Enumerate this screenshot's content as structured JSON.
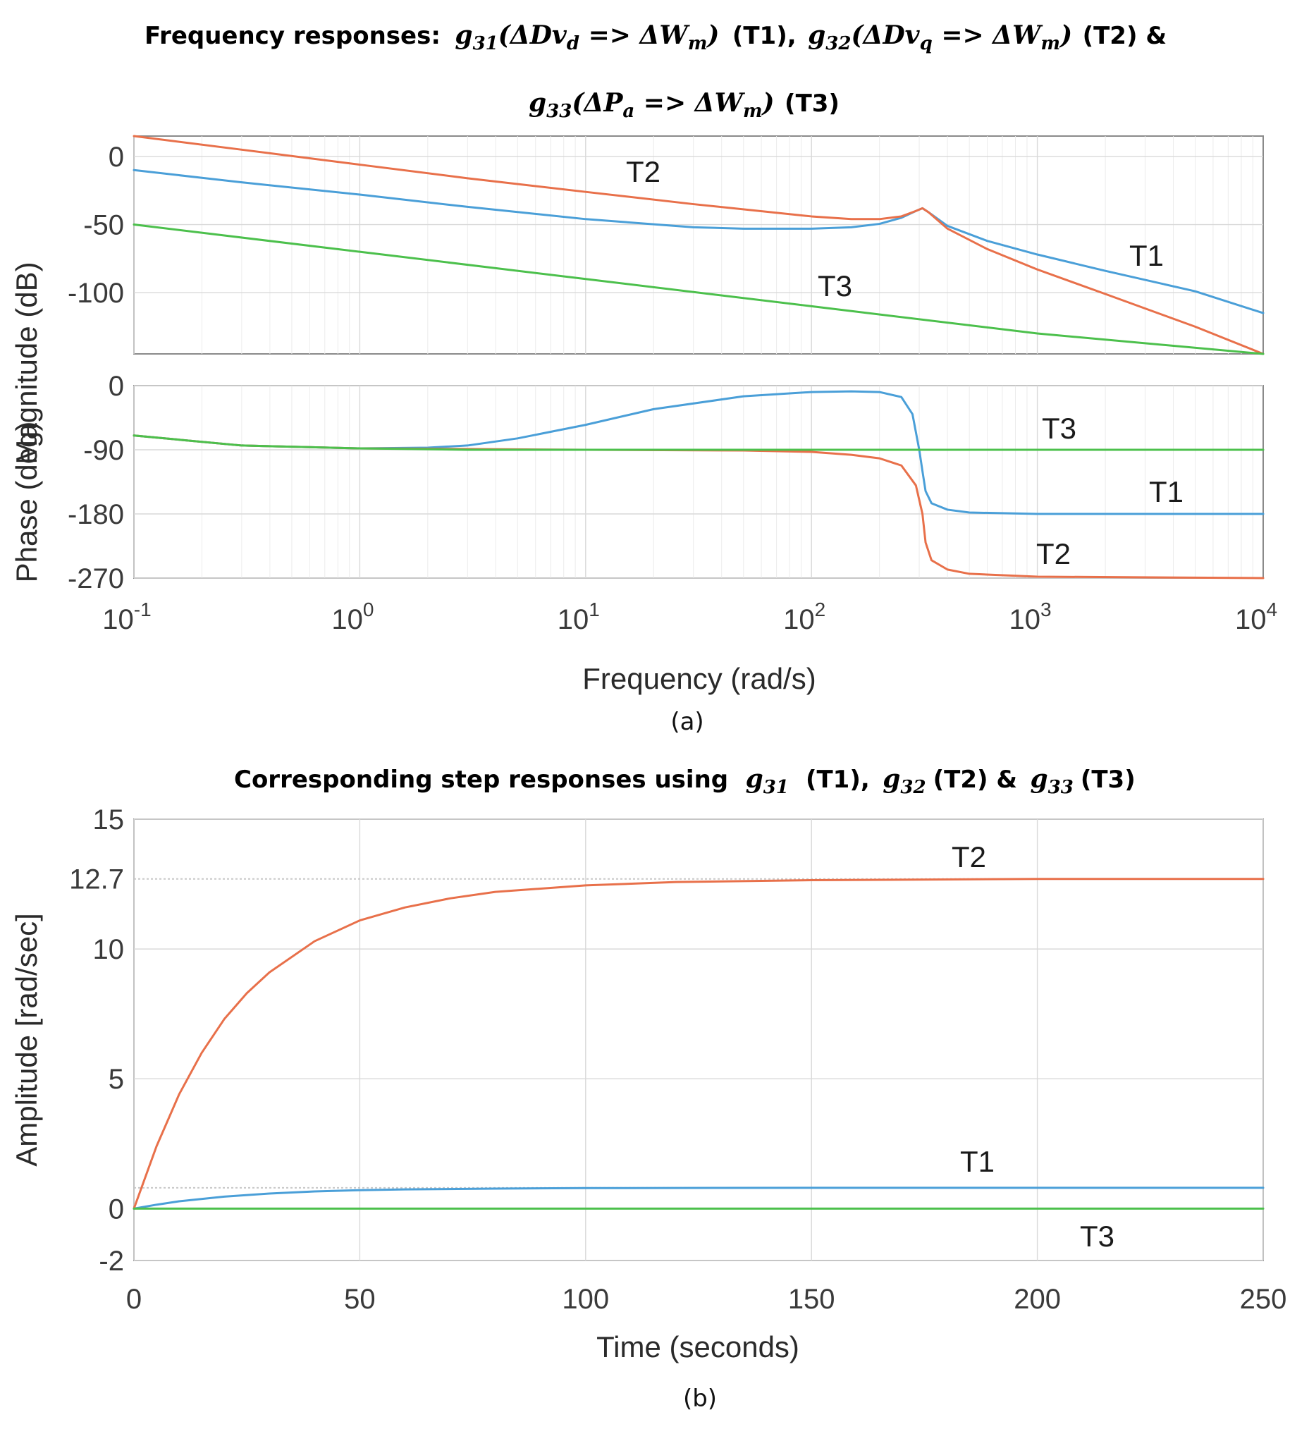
{
  "titles": {
    "freq_prefix": "Frequency responses:",
    "freq_eq1_g": "g",
    "freq_eq1_sub": "31",
    "freq_eq1_body": "(ΔDv",
    "freq_eq1_sub2": "d",
    "freq_eq1_arrow": " => ΔW",
    "freq_eq1_sub3": "m",
    "freq_eq1_close": ")",
    "freq_eq1_tag": "(T1),",
    "freq_eq2_g": "g",
    "freq_eq2_sub": "32",
    "freq_eq2_body": "(ΔDv",
    "freq_eq2_sub2": "q",
    "freq_eq2_arrow": " => ΔW",
    "freq_eq2_sub3": "m",
    "freq_eq2_close": ")",
    "freq_eq2_tag": "(T2) &",
    "freq_eq3_g": "g",
    "freq_eq3_sub": "33",
    "freq_eq3_body": "(ΔP",
    "freq_eq3_sub2": "a",
    "freq_eq3_arrow": " => ΔW",
    "freq_eq3_sub3": "m",
    "freq_eq3_close": ")",
    "freq_eq3_tag": "(T3)",
    "step_prefix": "Corresponding step responses using",
    "step_g1": "g",
    "step_g1_sub": "31",
    "step_g1_tag": "(T1),",
    "step_g2": "g",
    "step_g2_sub": "32",
    "step_g2_tag": "(T2) &",
    "step_g3": "g",
    "step_g3_sub": "33",
    "step_g3_tag": "(T3)"
  },
  "captions": {
    "a": "(a)",
    "b": "(b)"
  },
  "colors": {
    "T1": "#4a9fd8",
    "T2": "#e8704a",
    "T3": "#4cc04c"
  },
  "chart_data": [
    {
      "type": "line",
      "name": "bode-magnitude",
      "xscale": "log",
      "xlim": [
        0.1,
        10000
      ],
      "ylim": [
        -145,
        15
      ],
      "yticks": [
        0,
        -50,
        -100
      ],
      "ylabel": "Magnitude (dB)",
      "series": [
        {
          "name": "T1",
          "x": [
            0.1,
            0.3,
            1,
            3,
            10,
            30,
            50,
            100,
            150,
            200,
            250,
            290,
            310,
            330,
            400,
            600,
            1000,
            2000,
            5000,
            10000
          ],
          "values": [
            -10,
            -19,
            -28,
            -37,
            -46,
            -52,
            -53,
            -53,
            -52,
            -49.5,
            -45,
            -40,
            -38,
            -41,
            -51,
            -62,
            -72,
            -84,
            -99,
            -115
          ]
        },
        {
          "name": "T2",
          "x": [
            0.1,
            0.3,
            1,
            3,
            10,
            30,
            100,
            150,
            200,
            250,
            290,
            310,
            330,
            400,
            600,
            1000,
            2000,
            5000,
            10000
          ],
          "values": [
            15,
            5,
            -6,
            -16,
            -26,
            -35,
            -44,
            -46,
            -46,
            -44,
            -40,
            -38,
            -41,
            -53,
            -68,
            -83,
            -101,
            -125,
            -145
          ]
        },
        {
          "name": "T3",
          "x": [
            0.1,
            1,
            10,
            100,
            1000,
            10000
          ],
          "values": [
            -50,
            -70,
            -90,
            -110,
            -130,
            -150
          ]
        }
      ],
      "labels": {
        "T1": "T1",
        "T2": "T2",
        "T3": "T3"
      }
    },
    {
      "type": "line",
      "name": "bode-phase",
      "xscale": "log",
      "xlim": [
        0.1,
        10000
      ],
      "ylim": [
        -270,
        0
      ],
      "yticks": [
        0,
        -90,
        -180,
        -270
      ],
      "ylabel": "Phase (deg)",
      "xlabel": "Frequency  (rad/s)",
      "xticks": [
        {
          "value": 0.1,
          "base": "10",
          "exp": "-1"
        },
        {
          "value": 1,
          "base": "10",
          "exp": "0"
        },
        {
          "value": 10,
          "base": "10",
          "exp": "1"
        },
        {
          "value": 100,
          "base": "10",
          "exp": "2"
        },
        {
          "value": 1000,
          "base": "10",
          "exp": "3"
        },
        {
          "value": 10000,
          "base": "10",
          "exp": "4"
        }
      ],
      "series": [
        {
          "name": "T1",
          "x": [
            0.1,
            0.3,
            1,
            2,
            3,
            5,
            10,
            20,
            50,
            100,
            150,
            200,
            250,
            280,
            300,
            310,
            320,
            340,
            400,
            500,
            1000,
            10000
          ],
          "values": [
            -70,
            -84,
            -88,
            -87,
            -84,
            -74,
            -55,
            -33,
            -15,
            -9,
            -8,
            -9,
            -16,
            -40,
            -90,
            -120,
            -148,
            -165,
            -174,
            -178,
            -180,
            -180
          ]
        },
        {
          "name": "T2",
          "x": [
            0.1,
            0.3,
            1,
            10,
            50,
            100,
            150,
            200,
            250,
            290,
            310,
            320,
            340,
            400,
            500,
            1000,
            10000
          ],
          "values": [
            -70,
            -84,
            -88,
            -90,
            -91,
            -93,
            -97,
            -102,
            -112,
            -140,
            -180,
            -220,
            -245,
            -258,
            -264,
            -268,
            -270
          ]
        },
        {
          "name": "T3",
          "x": [
            0.1,
            0.3,
            1,
            3,
            10000
          ],
          "values": [
            -70,
            -84,
            -88,
            -90,
            -90
          ]
        }
      ],
      "labels": {
        "T1": "T1",
        "T2": "T2",
        "T3": "T3"
      }
    },
    {
      "type": "line",
      "name": "step-response",
      "xlim": [
        0,
        250
      ],
      "ylim": [
        -2,
        15
      ],
      "xticks": [
        "0",
        "50",
        "100",
        "150",
        "200",
        "250"
      ],
      "yticks": [
        "15",
        "12.7",
        "10",
        "5",
        "0",
        "-2"
      ],
      "ytick_values": [
        15,
        12.7,
        10,
        5,
        0,
        -2
      ],
      "xlabel": "Time (seconds)",
      "ylabel": "Amplitude  [rad/sec]",
      "steady_state": {
        "T1": 0.8,
        "T2": 12.7
      },
      "series": [
        {
          "name": "T1",
          "x": [
            0,
            5,
            10,
            20,
            30,
            40,
            50,
            60,
            80,
            100,
            150,
            200,
            250
          ],
          "values": [
            0,
            0.15,
            0.28,
            0.46,
            0.58,
            0.66,
            0.71,
            0.74,
            0.77,
            0.79,
            0.8,
            0.8,
            0.8
          ]
        },
        {
          "name": "T2",
          "x": [
            0,
            5,
            10,
            15,
            20,
            25,
            30,
            40,
            50,
            60,
            70,
            80,
            100,
            120,
            150,
            200,
            250
          ],
          "values": [
            0,
            2.4,
            4.4,
            6.0,
            7.3,
            8.3,
            9.1,
            10.3,
            11.1,
            11.6,
            11.95,
            12.2,
            12.45,
            12.58,
            12.65,
            12.7,
            12.7
          ]
        },
        {
          "name": "T3",
          "x": [
            0,
            250
          ],
          "values": [
            0,
            0
          ]
        }
      ],
      "labels": {
        "T1": "T1",
        "T2": "T2",
        "T3": "T3"
      }
    }
  ]
}
